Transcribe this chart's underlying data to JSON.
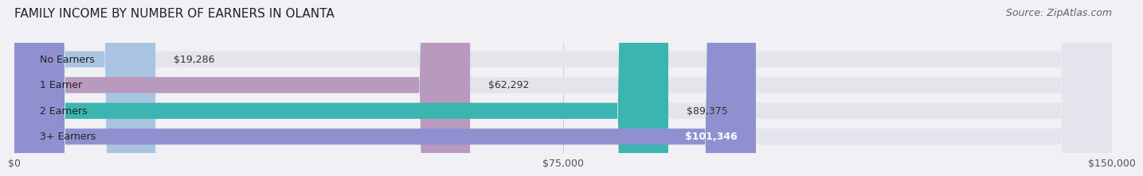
{
  "title": "FAMILY INCOME BY NUMBER OF EARNERS IN OLANTA",
  "source": "Source: ZipAtlas.com",
  "categories": [
    "No Earners",
    "1 Earner",
    "2 Earners",
    "3+ Earners"
  ],
  "values": [
    19286,
    62292,
    89375,
    101346
  ],
  "bar_colors": [
    "#a8c4e0",
    "#b89abe",
    "#3ab5b0",
    "#9090d0"
  ],
  "bar_label_colors": [
    "#333333",
    "#333333",
    "#333333",
    "#ffffff"
  ],
  "bar_labels": [
    "$19,286",
    "$62,292",
    "$89,375",
    "$101,346"
  ],
  "xmax": 150000,
  "xticks": [
    0,
    75000,
    150000
  ],
  "xticklabels": [
    "$0",
    "$75,000",
    "$150,000"
  ],
  "background_color": "#f0f0f5",
  "bar_bg_color": "#e4e4ec",
  "title_fontsize": 11,
  "label_fontsize": 9,
  "tick_fontsize": 9,
  "source_fontsize": 9
}
